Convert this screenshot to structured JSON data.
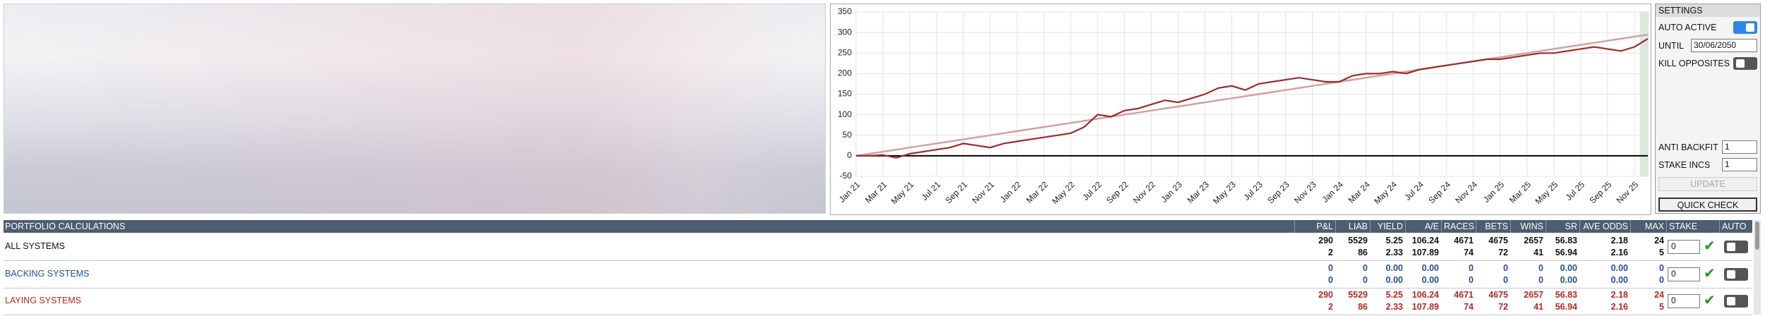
{
  "chart_data": {
    "type": "line",
    "categories": [
      "Jan 21",
      null,
      "Mar 21",
      null,
      "May 21",
      null,
      "Jul 21",
      null,
      "Sep 21",
      null,
      "Nov 21",
      null,
      "Jan 22",
      null,
      "Mar 22",
      null,
      "May 22",
      null,
      "Jul 22",
      null,
      "Sep 22",
      null,
      "Nov 22",
      null,
      "Jan 23",
      null,
      "Mar 23",
      null,
      "May 23",
      null,
      "Jul 23",
      null,
      "Sep 23",
      null,
      "Nov 23",
      null,
      "Jan 24",
      null,
      "Mar 24",
      null,
      "May 24",
      null,
      "Jul 24",
      null,
      "Sep 24",
      null,
      "Nov 24",
      null,
      "Jan 25",
      null,
      "Mar 25",
      null,
      "May 25",
      null,
      "Jul 25",
      null,
      "Sep 25",
      null,
      "Nov 25",
      null
    ],
    "series": [
      {
        "color": "#d4a0a0",
        "values": [
          0,
          5,
          10,
          15,
          20,
          25,
          30,
          35,
          40,
          45,
          50,
          55,
          60,
          65,
          70,
          75,
          80,
          85,
          90,
          95,
          100,
          105,
          110,
          115,
          120,
          125,
          130,
          135,
          140,
          145,
          150,
          155,
          160,
          165,
          170,
          175,
          180,
          185,
          190,
          195,
          200,
          205,
          210,
          215,
          220,
          225,
          230,
          235,
          240,
          245,
          250,
          255,
          260,
          265,
          270,
          275,
          280,
          285,
          290,
          295
        ]
      },
      {
        "color": "#9e2a2b",
        "values": [
          0,
          0,
          2,
          -5,
          5,
          10,
          15,
          20,
          30,
          25,
          20,
          30,
          35,
          40,
          45,
          50,
          55,
          70,
          100,
          95,
          110,
          115,
          125,
          135,
          130,
          140,
          150,
          165,
          170,
          160,
          175,
          180,
          185,
          190,
          185,
          180,
          180,
          195,
          200,
          200,
          205,
          200,
          210,
          215,
          220,
          225,
          230,
          235,
          235,
          240,
          245,
          250,
          250,
          255,
          260,
          265,
          260,
          255,
          265,
          285
        ]
      }
    ],
    "ylim": [
      -50,
      350
    ],
    "yticks": [
      -50,
      0,
      50,
      100,
      150,
      200,
      250,
      300,
      350
    ],
    "grid": true
  },
  "settings": {
    "title": "SETTINGS",
    "auto_active": {
      "label": "AUTO ACTIVE",
      "on": true
    },
    "until": {
      "label": "UNTIL",
      "value": "30/06/2050"
    },
    "kill_opposites": {
      "label": "KILL OPPOSITES",
      "on": false
    },
    "anti_backfit": {
      "label": "ANTI BACKFIT",
      "value": "1"
    },
    "stake_incs": {
      "label": "STAKE INCS",
      "value": "1"
    },
    "buttons": [
      "UPDATE",
      "QUICK CHECK"
    ]
  },
  "table": {
    "title": "PORTFOLIO CALCULATIONS",
    "columns": [
      "P&L",
      "LIAB",
      "YIELD",
      "A/E",
      "RACES",
      "BETS",
      "WINS",
      "SR",
      "AVE ODDS",
      "MAX DD",
      "STAKE",
      "AUTO"
    ],
    "rows": [
      {
        "label": "ALL SYSTEMS",
        "color": "#111111",
        "lines": [
          [
            "290",
            "5529",
            "5.25",
            "106.24",
            "4671",
            "4675",
            "2657",
            "56.83",
            "2.18",
            "24"
          ],
          [
            "2",
            "86",
            "2.33",
            "107.89",
            "74",
            "72",
            "41",
            "56.94",
            "2.16",
            "5"
          ]
        ],
        "stake": "0",
        "auto": false
      },
      {
        "label": "BACKING SYSTEMS",
        "color": "#1f4f9a",
        "lines": [
          [
            "0",
            "0",
            "0.00",
            "0.00",
            "0",
            "0",
            "0",
            "0.00",
            "0.00",
            "0"
          ],
          [
            "0",
            "0",
            "0.00",
            "0.00",
            "0",
            "0",
            "0",
            "0.00",
            "0.00",
            "0"
          ]
        ],
        "stake": "0",
        "auto": false
      },
      {
        "label": "LAYING SYSTEMS",
        "color": "#b02a2a",
        "lines": [
          [
            "290",
            "5529",
            "5.25",
            "106.24",
            "4671",
            "4675",
            "2657",
            "56.83",
            "2.18",
            "24"
          ],
          [
            "2",
            "86",
            "2.33",
            "107.89",
            "74",
            "72",
            "41",
            "56.94",
            "2.16",
            "5"
          ]
        ],
        "stake": "0",
        "auto": false
      }
    ]
  }
}
